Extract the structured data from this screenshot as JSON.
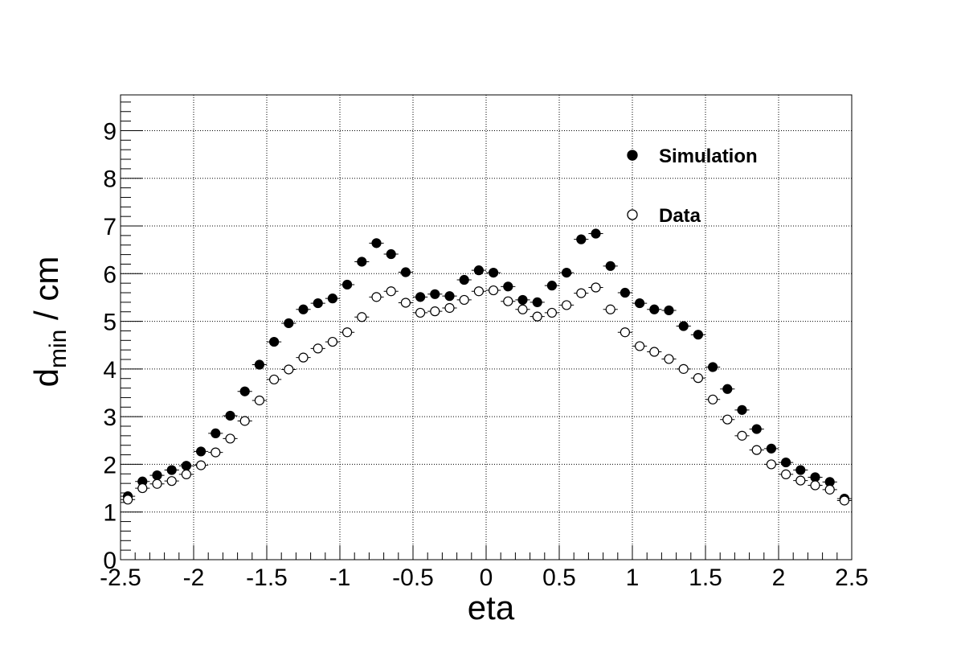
{
  "chart_data": {
    "type": "scatter",
    "title": "",
    "xlabel": "eta",
    "ylabel_main": "d",
    "ylabel_sub": "min",
    "ylabel_rest": " / cm",
    "xlim": [
      -2.5,
      2.5
    ],
    "ylim": [
      0,
      9.75
    ],
    "x_ticks": [
      -2.5,
      -2,
      -1.5,
      -1,
      -0.5,
      0,
      0.5,
      1,
      1.5,
      2,
      2.5
    ],
    "x_tick_labels": [
      "-2.5",
      "-2",
      "-1.5",
      "-1",
      "-0.5",
      "0",
      "0.5",
      "1",
      "1.5",
      "2",
      "2.5"
    ],
    "y_ticks": [
      0,
      1,
      2,
      3,
      4,
      5,
      6,
      7,
      8,
      9
    ],
    "y_tick_labels": [
      "0",
      "1",
      "2",
      "3",
      "4",
      "5",
      "6",
      "7",
      "8",
      "9"
    ],
    "grid": true,
    "legend_position": "top-right",
    "bin_half_width": 0.05,
    "x": [
      -2.45,
      -2.35,
      -2.25,
      -2.15,
      -2.05,
      -1.95,
      -1.85,
      -1.75,
      -1.65,
      -1.55,
      -1.45,
      -1.35,
      -1.25,
      -1.15,
      -1.05,
      -0.95,
      -0.85,
      -0.75,
      -0.65,
      -0.55,
      -0.45,
      -0.35,
      -0.25,
      -0.15,
      -0.05,
      0.05,
      0.15,
      0.25,
      0.35,
      0.45,
      0.55,
      0.65,
      0.75,
      0.85,
      0.95,
      1.05,
      1.15,
      1.25,
      1.35,
      1.45,
      1.55,
      1.65,
      1.75,
      1.85,
      1.95,
      2.05,
      2.15,
      2.25,
      2.35,
      2.45
    ],
    "series": [
      {
        "name": "Simulation",
        "marker": "filled-circle",
        "values": [
          1.33,
          1.64,
          1.77,
          1.88,
          1.97,
          2.27,
          2.65,
          3.02,
          3.53,
          4.09,
          4.57,
          4.96,
          5.25,
          5.38,
          5.48,
          5.77,
          6.25,
          6.64,
          6.41,
          6.03,
          5.51,
          5.57,
          5.53,
          5.87,
          6.07,
          6.02,
          5.73,
          5.45,
          5.4,
          5.75,
          6.02,
          6.72,
          6.84,
          6.16,
          5.6,
          5.38,
          5.25,
          5.23,
          4.9,
          4.72,
          4.04,
          3.58,
          3.14,
          2.74,
          2.33,
          2.04,
          1.88,
          1.73,
          1.63,
          1.28
        ]
      },
      {
        "name": "Data",
        "marker": "open-circle",
        "values": [
          1.26,
          1.5,
          1.59,
          1.65,
          1.79,
          1.98,
          2.25,
          2.54,
          2.91,
          3.34,
          3.78,
          3.99,
          4.24,
          4.43,
          4.57,
          4.77,
          5.09,
          5.51,
          5.63,
          5.39,
          5.18,
          5.21,
          5.28,
          5.45,
          5.63,
          5.65,
          5.42,
          5.25,
          5.1,
          5.18,
          5.34,
          5.59,
          5.71,
          5.25,
          4.77,
          4.48,
          4.36,
          4.21,
          4.0,
          3.81,
          3.36,
          2.94,
          2.6,
          2.3,
          2.0,
          1.79,
          1.66,
          1.56,
          1.47,
          1.24
        ]
      }
    ]
  }
}
